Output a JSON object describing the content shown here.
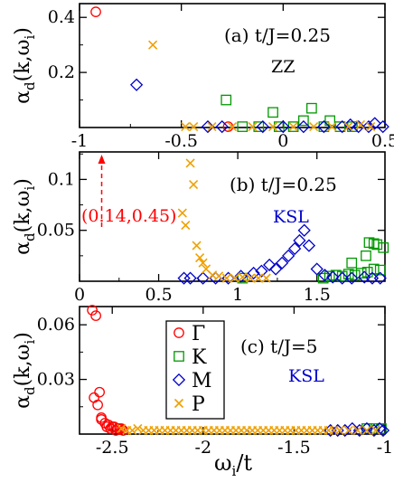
{
  "figure": {
    "series_styles": [
      {
        "key": "Gamma",
        "name": "Γ",
        "marker": "circle",
        "color": "#ff0000"
      },
      {
        "key": "K",
        "name": "K",
        "marker": "square",
        "color": "#009900"
      },
      {
        "key": "M",
        "name": "M",
        "marker": "diamond",
        "color": "#0000cc"
      },
      {
        "key": "P",
        "name": "P",
        "marker": "cross",
        "color": "#f0a000"
      }
    ],
    "legend": {
      "placement": "top-left of panel (c)",
      "entries": [
        "Γ",
        "K",
        "M",
        "P"
      ]
    }
  },
  "chart_data": [
    {
      "type": "scatter",
      "panel_label": "(a) t/J=0.25",
      "panel_tag": "ZZ",
      "panel_tag_color": "#000000",
      "ylabel": "α",
      "ylabel_sub": "d",
      "ylabel_tail": "(k,ω",
      "ylabel_sub2": "i",
      "ylabel_end": ")",
      "xlim": [
        -1,
        0.5
      ],
      "ylim": [
        0,
        0.45
      ],
      "xticks": [
        "-1",
        "-0.5",
        "0",
        "0.5"
      ],
      "xtick_values": [
        -1,
        -0.5,
        0,
        0.5
      ],
      "yticks": [
        "0.2",
        "0.4"
      ],
      "ytick_values": [
        0.2,
        0.4
      ],
      "grid": false,
      "series": [
        {
          "key": "Gamma",
          "x": [
            -0.92,
            -0.27
          ],
          "y": [
            0.42,
            0.003
          ]
        },
        {
          "key": "K",
          "x": [
            -0.28,
            -0.2,
            -0.12,
            -0.05,
            -0.02,
            0.05,
            0.1,
            0.14,
            0.2,
            0.23,
            0.28,
            0.34
          ],
          "y": [
            0.1,
            0.003,
            0.003,
            0.055,
            0.003,
            0.003,
            0.025,
            0.07,
            0.003,
            0.025,
            0.003,
            0.003
          ]
        },
        {
          "key": "M",
          "x": [
            -0.72,
            -0.37,
            -0.3,
            -0.1,
            0.0,
            0.1,
            0.2,
            0.29,
            0.33,
            0.37,
            0.42,
            0.45,
            0.49
          ],
          "y": [
            0.155,
            0.003,
            0.003,
            0.003,
            0.003,
            0.003,
            0.003,
            0.003,
            0.01,
            0.003,
            0.003,
            0.015,
            0.003
          ]
        },
        {
          "key": "P",
          "x": [
            -0.64,
            -0.48,
            -0.44,
            -0.35,
            -0.25,
            -0.15,
            -0.05,
            0.05,
            0.15,
            0.24,
            0.32,
            0.38,
            0.43
          ],
          "y": [
            0.3,
            0.003,
            0.003,
            0.003,
            0.003,
            0.003,
            0.003,
            0.003,
            0.003,
            0.003,
            0.003,
            0.01,
            0.003
          ]
        }
      ]
    },
    {
      "type": "scatter",
      "panel_label": "(b) t/J=0.25",
      "panel_tag": "KSL",
      "panel_tag_color": "#0000cc",
      "ylabel": "α",
      "ylabel_sub": "d",
      "ylabel_tail": "(k,ω",
      "ylabel_sub2": "i",
      "ylabel_end": ")",
      "xlim": [
        0,
        1.93
      ],
      "ylim": [
        0,
        0.127
      ],
      "xticks": [
        "0",
        "0.5",
        "1",
        "1.5"
      ],
      "xtick_values": [
        0,
        0.5,
        1,
        1.5
      ],
      "yticks": [
        "0.05",
        "0.1"
      ],
      "ytick_values": [
        0.05,
        0.1
      ],
      "grid": false,
      "annotation": {
        "text": "(0.14,0.45)",
        "x": 0.14,
        "color": "#ff0000"
      },
      "series": [
        {
          "key": "K",
          "x": [
            1.03,
            1.54,
            1.58,
            1.62,
            1.66,
            1.7,
            1.74,
            1.78,
            1.82,
            1.86,
            1.9,
            1.83,
            1.86,
            1.88,
            1.81,
            1.92,
            1.72
          ],
          "y": [
            0.003,
            0.003,
            0.005,
            0.006,
            0.005,
            0.007,
            0.006,
            0.008,
            0.009,
            0.012,
            0.011,
            0.038,
            0.037,
            0.036,
            0.025,
            0.033,
            0.018
          ]
        },
        {
          "key": "M",
          "x": [
            0.66,
            0.7,
            0.78,
            0.86,
            0.94,
            1.02,
            1.1,
            1.15,
            1.2,
            1.24,
            1.28,
            1.32,
            1.36,
            1.39,
            1.42,
            1.45,
            1.5,
            1.55,
            1.6,
            1.66,
            1.72,
            1.8,
            1.85,
            1.9
          ],
          "y": [
            0.003,
            0.003,
            0.003,
            0.003,
            0.003,
            0.005,
            0.008,
            0.01,
            0.016,
            0.012,
            0.018,
            0.025,
            0.032,
            0.04,
            0.05,
            0.035,
            0.012,
            0.006,
            0.004,
            0.003,
            0.003,
            0.004,
            0.003,
            0.003
          ]
        },
        {
          "key": "P",
          "x": [
            0.65,
            0.67,
            0.7,
            0.72,
            0.74,
            0.76,
            0.78,
            0.8,
            0.84,
            0.88,
            0.93,
            0.98,
            1.03,
            1.08,
            1.13,
            1.18
          ],
          "y": [
            0.067,
            0.055,
            0.116,
            0.095,
            0.035,
            0.023,
            0.018,
            0.012,
            0.006,
            0.005,
            0.003,
            0.003,
            0.004,
            0.003,
            0.003,
            0.003
          ]
        }
      ]
    },
    {
      "type": "scatter",
      "panel_label": "(c) t/J=5",
      "panel_tag": "KSL",
      "panel_tag_color": "#0000cc",
      "xlabel": "ω",
      "xlabel_sub": "i",
      "xlabel_tail": "/t",
      "ylabel": "α",
      "ylabel_sub": "d",
      "ylabel_tail": "(k,ω",
      "ylabel_sub2": "i",
      "ylabel_end": ")",
      "xlim": [
        -2.68,
        -1
      ],
      "ylim": [
        0,
        0.07
      ],
      "xticks": [
        "-2.5",
        "-2",
        "-1.5",
        "-1"
      ],
      "xtick_values": [
        -2.5,
        -2,
        -1.5,
        -1
      ],
      "yticks": [
        "0.03",
        "0.06"
      ],
      "ytick_values": [
        0.03,
        0.06
      ],
      "grid": false,
      "series": [
        {
          "key": "Gamma",
          "x": [
            -2.61,
            -2.59,
            -2.6,
            -2.57,
            -2.58,
            -2.56,
            -2.56,
            -2.54,
            -2.52,
            -2.5,
            -2.49,
            -2.47,
            -2.46,
            -2.45,
            -2.48,
            -2.51,
            -2.53,
            -2.44
          ],
          "y": [
            0.068,
            0.065,
            0.02,
            0.023,
            0.016,
            0.009,
            0.008,
            0.006,
            0.005,
            0.004,
            0.004,
            0.003,
            0.003,
            0.003,
            0.002,
            0.003,
            0.004,
            0.002
          ]
        },
        {
          "key": "K",
          "x": [
            -1.1,
            -1.06,
            -1.02
          ],
          "y": [
            0.003,
            0.003,
            0.003
          ]
        },
        {
          "key": "M",
          "x": [
            -1.3,
            -1.26,
            -1.22,
            -1.18,
            -1.14,
            -1.1,
            -1.06,
            -1.03,
            -1.01
          ],
          "y": [
            0.002,
            0.002,
            0.002,
            0.003,
            0.002,
            0.003,
            0.002,
            0.003,
            0.002
          ]
        },
        {
          "key": "P",
          "x": [
            -2.45,
            -2.42,
            -2.39,
            -2.36,
            -2.33,
            -2.3,
            -2.27,
            -2.24,
            -2.21,
            -2.18,
            -2.15,
            -2.12,
            -2.09,
            -2.06,
            -2.03,
            -2.0,
            -1.97,
            -1.94,
            -1.91,
            -1.88,
            -1.85,
            -1.82,
            -1.79,
            -1.76,
            -1.73,
            -1.7,
            -1.67,
            -1.64,
            -1.61,
            -1.58,
            -1.55,
            -1.52,
            -1.49,
            -1.46,
            -1.43,
            -1.4,
            -1.37,
            -1.34,
            -1.31,
            -1.28,
            -1.25,
            -1.2,
            -1.15,
            -1.1,
            -1.05
          ],
          "y": [
            0.003,
            0.002,
            0.002,
            0.003,
            0.002,
            0.002,
            0.002,
            0.002,
            0.002,
            0.002,
            0.002,
            0.002,
            0.002,
            0.002,
            0.002,
            0.002,
            0.002,
            0.002,
            0.002,
            0.002,
            0.002,
            0.002,
            0.002,
            0.002,
            0.002,
            0.002,
            0.002,
            0.002,
            0.002,
            0.002,
            0.002,
            0.002,
            0.002,
            0.002,
            0.002,
            0.002,
            0.002,
            0.002,
            0.002,
            0.002,
            0.002,
            0.002,
            0.002,
            0.002,
            0.002
          ]
        }
      ]
    }
  ]
}
